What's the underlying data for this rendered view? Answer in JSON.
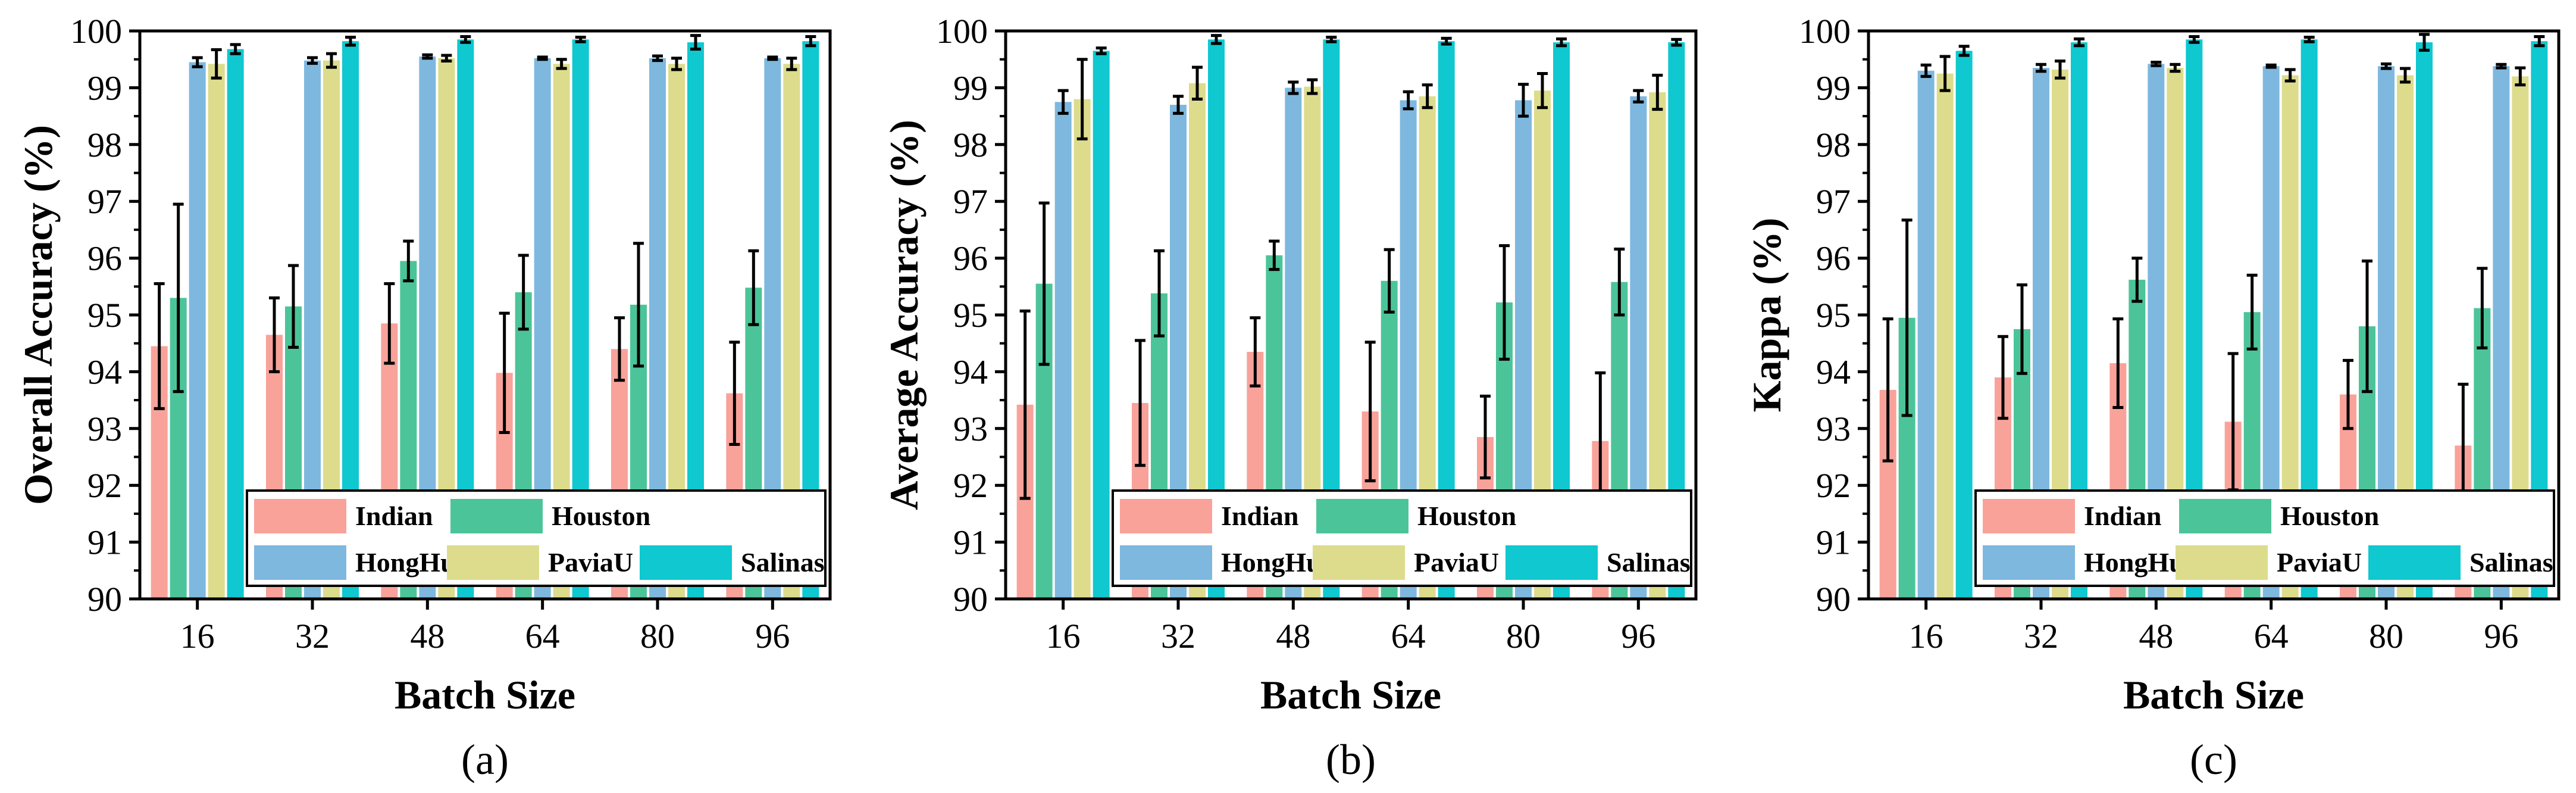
{
  "series_names": [
    "Indian",
    "Houston",
    "HongHu",
    "PaviaU",
    "Salinas"
  ],
  "colors": {
    "Indian": "#f8a29a",
    "Houston": "#4cc49a",
    "HongHu": "#7eb8df",
    "PaviaU": "#dcdc8c",
    "Salinas": "#0fc8d0"
  },
  "chart_data": [
    {
      "type": "bar",
      "panel_label": "(a)",
      "panel_letter": "a",
      "title": "",
      "xlabel": "Batch Size",
      "ylabel": "Overall Accuracy (%)",
      "ylim": [
        90,
        100
      ],
      "yticks": [
        "90",
        "91",
        "92",
        "93",
        "94",
        "95",
        "96",
        "97",
        "98",
        "99",
        "100"
      ],
      "categories": [
        "16",
        "32",
        "48",
        "64",
        "80",
        "96"
      ],
      "series": [
        {
          "name": "Indian",
          "values": [
            94.45,
            94.65,
            94.85,
            93.98,
            94.4,
            93.62
          ],
          "errors": [
            1.1,
            0.65,
            0.7,
            1.05,
            0.55,
            0.9
          ]
        },
        {
          "name": "Houston",
          "values": [
            95.3,
            95.15,
            95.95,
            95.4,
            95.18,
            95.48
          ],
          "errors": [
            1.65,
            0.72,
            0.35,
            0.65,
            1.08,
            0.65
          ]
        },
        {
          "name": "HongHu",
          "values": [
            99.45,
            99.48,
            99.55,
            99.52,
            99.52,
            99.52
          ],
          "errors": [
            0.08,
            0.05,
            0.03,
            0.02,
            0.04,
            0.02
          ]
        },
        {
          "name": "PaviaU",
          "values": [
            99.42,
            99.48,
            99.52,
            99.42,
            99.42,
            99.42
          ],
          "errors": [
            0.25,
            0.12,
            0.05,
            0.08,
            0.1,
            0.1
          ]
        },
        {
          "name": "Salinas",
          "values": [
            99.68,
            99.82,
            99.85,
            99.85,
            99.8,
            99.82
          ],
          "errors": [
            0.08,
            0.07,
            0.05,
            0.04,
            0.12,
            0.08
          ]
        }
      ],
      "legend": {
        "position": "bottom-right",
        "entries": [
          "Indian",
          "Houston",
          "HongHu",
          "PaviaU",
          "Salinas"
        ]
      }
    },
    {
      "type": "bar",
      "panel_label": "(b)",
      "panel_letter": "b",
      "title": "",
      "xlabel": "Batch Size",
      "ylabel": "Average Accuracy (%)",
      "ylim": [
        90,
        100
      ],
      "yticks": [
        "90",
        "91",
        "92",
        "93",
        "94",
        "95",
        "96",
        "97",
        "98",
        "99",
        "100"
      ],
      "categories": [
        "16",
        "32",
        "48",
        "64",
        "80",
        "96"
      ],
      "series": [
        {
          "name": "Indian",
          "values": [
            93.42,
            93.45,
            94.35,
            93.3,
            92.85,
            92.78
          ],
          "errors": [
            1.65,
            1.1,
            0.6,
            1.22,
            0.72,
            1.2
          ]
        },
        {
          "name": "Houston",
          "values": [
            95.55,
            95.38,
            96.05,
            95.6,
            95.22,
            95.58
          ],
          "errors": [
            1.42,
            0.75,
            0.25,
            0.55,
            1.0,
            0.58
          ]
        },
        {
          "name": "HongHu",
          "values": [
            98.75,
            98.7,
            99.0,
            98.78,
            98.78,
            98.85
          ],
          "errors": [
            0.2,
            0.15,
            0.1,
            0.15,
            0.28,
            0.1
          ]
        },
        {
          "name": "PaviaU",
          "values": [
            98.8,
            99.08,
            99.02,
            98.85,
            98.95,
            98.92
          ],
          "errors": [
            0.7,
            0.28,
            0.12,
            0.2,
            0.3,
            0.3
          ]
        },
        {
          "name": "Salinas",
          "values": [
            99.65,
            99.85,
            99.85,
            99.82,
            99.8,
            99.8
          ],
          "errors": [
            0.05,
            0.07,
            0.04,
            0.05,
            0.06,
            0.05
          ]
        }
      ],
      "legend": {
        "position": "bottom-right",
        "entries": [
          "Indian",
          "Houston",
          "HongHu",
          "PaviaU",
          "Salinas"
        ]
      }
    },
    {
      "type": "bar",
      "panel_label": "(c)",
      "panel_letter": "c",
      "title": "",
      "xlabel": "Batch Size",
      "ylabel": "Kappa (%)",
      "ylim": [
        90,
        100
      ],
      "yticks": [
        "90",
        "91",
        "92",
        "93",
        "94",
        "95",
        "96",
        "97",
        "98",
        "99",
        "100"
      ],
      "categories": [
        "16",
        "32",
        "48",
        "64",
        "80",
        "96"
      ],
      "series": [
        {
          "name": "Indian",
          "values": [
            93.68,
            93.9,
            94.15,
            93.12,
            93.6,
            92.7
          ],
          "errors": [
            1.25,
            0.72,
            0.78,
            1.2,
            0.6,
            1.08
          ]
        },
        {
          "name": "Houston",
          "values": [
            94.95,
            94.75,
            95.62,
            95.05,
            94.8,
            95.12
          ],
          "errors": [
            1.72,
            0.78,
            0.38,
            0.65,
            1.15,
            0.7
          ]
        },
        {
          "name": "HongHu",
          "values": [
            99.3,
            99.35,
            99.42,
            99.38,
            99.38,
            99.38
          ],
          "errors": [
            0.1,
            0.06,
            0.03,
            0.02,
            0.04,
            0.03
          ]
        },
        {
          "name": "PaviaU",
          "values": [
            99.25,
            99.32,
            99.35,
            99.22,
            99.22,
            99.2
          ],
          "errors": [
            0.3,
            0.15,
            0.06,
            0.1,
            0.12,
            0.15
          ]
        },
        {
          "name": "Salinas",
          "values": [
            99.65,
            99.8,
            99.85,
            99.85,
            99.8,
            99.82
          ],
          "errors": [
            0.08,
            0.06,
            0.05,
            0.04,
            0.14,
            0.08
          ]
        }
      ],
      "legend": {
        "position": "bottom-right",
        "entries": [
          "Indian",
          "Houston",
          "HongHu",
          "PaviaU",
          "Salinas"
        ]
      }
    }
  ]
}
